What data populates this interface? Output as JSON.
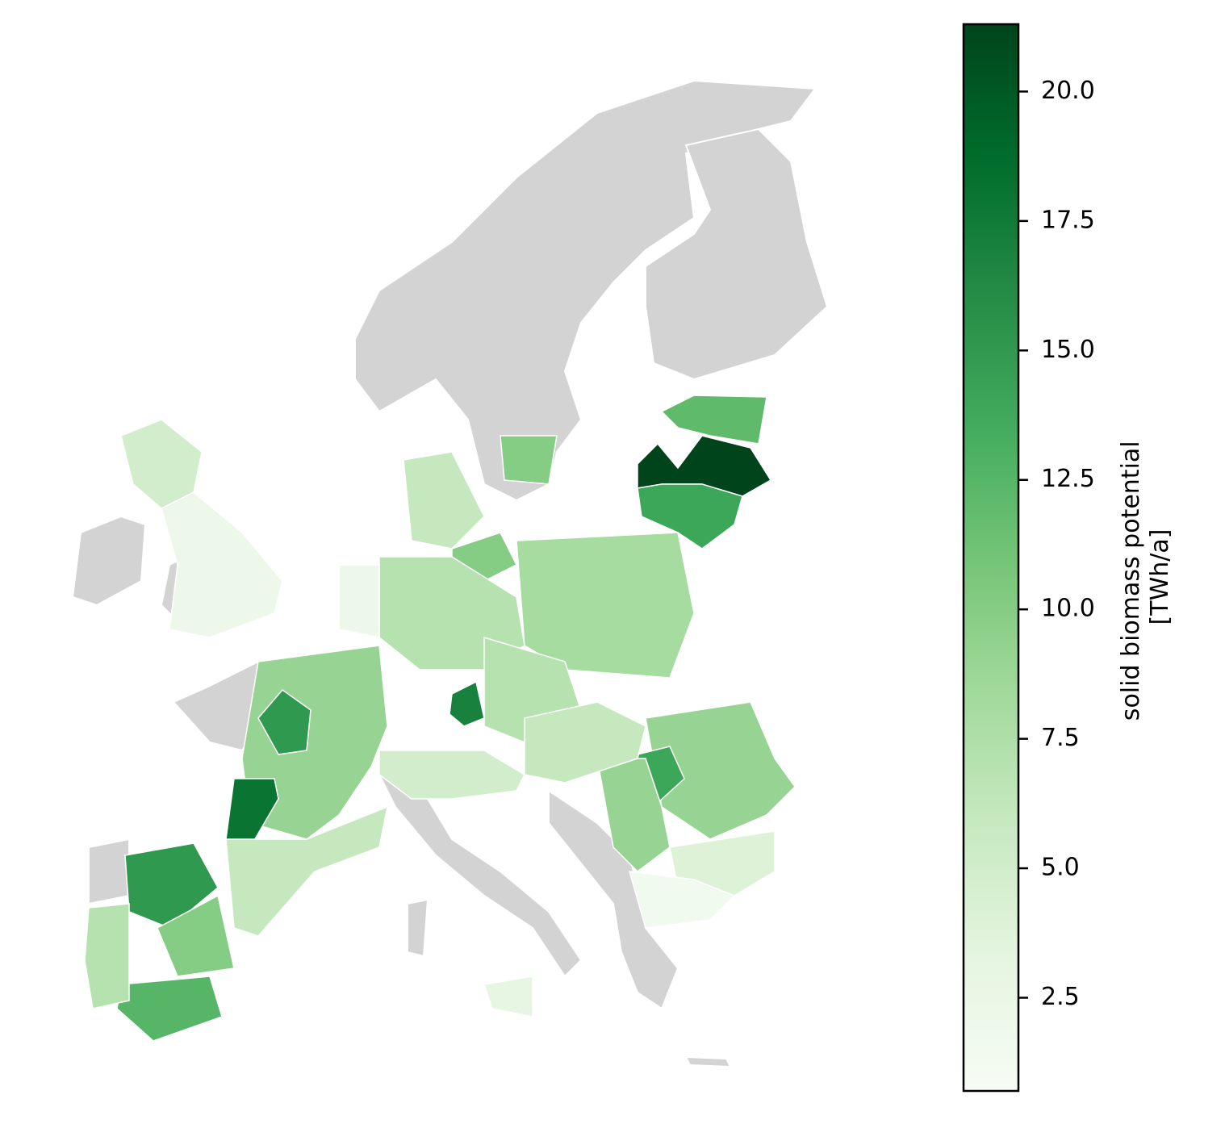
{
  "chart_data": {
    "type": "choropleth",
    "colorbar_label": [
      "solid biomass potential",
      "[TWh/a]"
    ],
    "clim": [
      0.7,
      21.3
    ],
    "colormap": [
      "#f7fcf5",
      "#e5f5e0",
      "#c7e9c0",
      "#a1d99b",
      "#74c476",
      "#41ab5d",
      "#238b45",
      "#006d2c",
      "#00441b"
    ],
    "ticks": [
      2.5,
      {
        "value": 5,
        "label": "5.0"
      },
      7.5,
      {
        "value": 10,
        "label": "10.0"
      },
      12.5,
      {
        "value": 15,
        "label": "15.0"
      },
      17.5,
      {
        "value": 20,
        "label": "20.0"
      }
    ],
    "values": [
      21.3,
      14,
      12,
      10,
      5,
      2,
      6,
      10,
      7,
      8,
      17,
      7,
      9,
      14,
      9,
      4,
      1.5,
      9,
      15,
      18,
      6,
      15,
      10,
      12.5,
      7,
      5,
      3,
      2,
      6
    ]
  }
}
